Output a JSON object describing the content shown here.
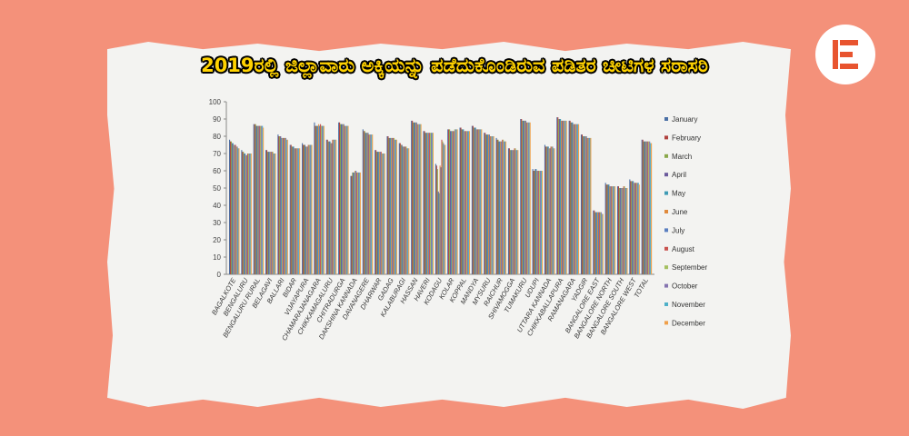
{
  "title": "2019ರಲ್ಲಿ ಜಿಲ್ಲಾವಾರು ಅಕ್ಕಿಯನ್ನು ಪಡೆದುಕೊಂಡಿರುವ ಪಡಿತರ ಚೀಟಿಗಳ ಸರಾಸರಿ",
  "logo_icon": "e-logo-icon",
  "colors": {
    "background": "#f4917a",
    "title": "#ffd200",
    "logo": "#e8542f"
  },
  "chart_data": {
    "type": "bar",
    "title": "",
    "xlabel": "",
    "ylabel": "",
    "ylim": [
      0,
      100
    ],
    "yticks": [
      "0",
      "10",
      "20",
      "30",
      "40",
      "50",
      "60",
      "70",
      "80",
      "90",
      "100"
    ],
    "grid": false,
    "legend_position": "right",
    "categories": [
      "BAGALKOTE",
      "BENGALURU",
      "BENGALURU RURAL",
      "BELAGAVI",
      "BALLARI",
      "BIDAR",
      "VIJAYAPURA",
      "CHAMARAJANAGARA",
      "CHIKKAMAGALURU",
      "CHITRADURGA",
      "DAKSHINA KANNADA",
      "DAVANAGERE",
      "DHARWAR",
      "GADAG",
      "KALABURAGI",
      "HASSAN",
      "HAVERI",
      "KODAGU",
      "KOLAR",
      "KOPPAL",
      "MANDYA",
      "MYSURU",
      "RAICHUR",
      "SHIVAMOGGA",
      "TUMAKURU",
      "UDUPI",
      "UTTARA KANNADA",
      "CHIKKABALLAPURA",
      "RAMANAGARA",
      "YADGIR",
      "BANGALORE EAST",
      "BANGALORE NORTH",
      "BANGALORE SOUTH",
      "BANGALORE WEST",
      "TOTAL"
    ],
    "series": [
      {
        "name": "January",
        "values": [
          78,
          72,
          87,
          72,
          81,
          75,
          76,
          88,
          78,
          88,
          57,
          84,
          72,
          80,
          76,
          89,
          83,
          64,
          84,
          85,
          86,
          82,
          79,
          73,
          90,
          61,
          75,
          91,
          89,
          81,
          37,
          53,
          51,
          55,
          78
        ]
      },
      {
        "name": "February",
        "values": [
          77,
          71,
          87,
          72,
          80,
          75,
          75,
          86,
          78,
          88,
          57,
          83,
          72,
          80,
          76,
          89,
          83,
          63,
          84,
          85,
          86,
          82,
          78,
          73,
          90,
          60,
          74,
          91,
          89,
          81,
          37,
          52,
          51,
          54,
          78
        ]
      },
      {
        "name": "March",
        "values": [
          77,
          71,
          87,
          71,
          80,
          74,
          75,
          86,
          77,
          87,
          59,
          83,
          71,
          79,
          75,
          88,
          82,
          61,
          84,
          84,
          85,
          81,
          78,
          72,
          89,
          60,
          74,
          90,
          88,
          80,
          36,
          52,
          50,
          54,
          77
        ]
      },
      {
        "name": "April",
        "values": [
          76,
          70,
          86,
          71,
          80,
          74,
          75,
          86,
          77,
          87,
          59,
          82,
          71,
          79,
          75,
          88,
          82,
          48,
          83,
          84,
          85,
          81,
          77,
          72,
          89,
          61,
          74,
          90,
          88,
          80,
          36,
          52,
          50,
          54,
          77
        ]
      },
      {
        "name": "May",
        "values": [
          76,
          70,
          86,
          71,
          79,
          74,
          74,
          86,
          77,
          87,
          59,
          82,
          71,
          79,
          74,
          88,
          82,
          47,
          83,
          84,
          85,
          81,
          77,
          72,
          89,
          61,
          74,
          90,
          88,
          80,
          36,
          52,
          50,
          54,
          77
        ]
      },
      {
        "name": "June",
        "values": [
          75,
          69,
          86,
          71,
          79,
          73,
          74,
          87,
          76,
          87,
          60,
          82,
          71,
          79,
          74,
          88,
          82,
          63,
          83,
          83,
          84,
          81,
          77,
          72,
          89,
          60,
          73,
          89,
          87,
          80,
          36,
          51,
          50,
          53,
          77
        ]
      },
      {
        "name": "July",
        "values": [
          75,
          69,
          86,
          71,
          79,
          73,
          74,
          86,
          76,
          87,
          60,
          82,
          71,
          79,
          74,
          88,
          82,
          62,
          83,
          83,
          84,
          81,
          77,
          72,
          89,
          60,
          73,
          89,
          87,
          80,
          36,
          51,
          50,
          53,
          77
        ]
      },
      {
        "name": "August",
        "values": [
          75,
          70,
          86,
          71,
          79,
          73,
          75,
          87,
          78,
          86,
          59,
          81,
          71,
          79,
          74,
          87,
          82,
          78,
          83,
          83,
          84,
          80,
          78,
          73,
          88,
          60,
          74,
          89,
          87,
          79,
          36,
          51,
          51,
          53,
          77
        ]
      },
      {
        "name": "September",
        "values": [
          74,
          70,
          86,
          71,
          79,
          73,
          75,
          86,
          78,
          86,
          59,
          81,
          70,
          79,
          74,
          87,
          82,
          77,
          84,
          83,
          84,
          80,
          78,
          73,
          88,
          60,
          74,
          89,
          87,
          79,
          36,
          51,
          51,
          53,
          77
        ]
      },
      {
        "name": "October",
        "values": [
          74,
          70,
          86,
          70,
          79,
          73,
          75,
          86,
          78,
          86,
          59,
          81,
          70,
          78,
          73,
          87,
          82,
          76,
          84,
          83,
          84,
          80,
          77,
          72,
          88,
          60,
          74,
          89,
          87,
          79,
          36,
          51,
          50,
          53,
          77
        ]
      },
      {
        "name": "November",
        "values": [
          73,
          70,
          86,
          70,
          78,
          73,
          75,
          86,
          78,
          86,
          59,
          81,
          70,
          78,
          73,
          87,
          82,
          75,
          84,
          83,
          84,
          80,
          77,
          72,
          88,
          60,
          73,
          89,
          87,
          79,
          35,
          51,
          50,
          53,
          76
        ]
      },
      {
        "name": "December",
        "values": [
          73,
          70,
          85,
          70,
          78,
          73,
          75,
          86,
          78,
          86,
          59,
          81,
          70,
          78,
          73,
          87,
          82,
          75,
          84,
          83,
          84,
          80,
          77,
          72,
          88,
          60,
          73,
          89,
          87,
          79,
          35,
          51,
          50,
          52,
          76
        ]
      }
    ],
    "series_colors": [
      "#4a6fa5",
      "#b0413e",
      "#8aa84a",
      "#6b5a9c",
      "#3f9bb5",
      "#e08a3c",
      "#5a7fc0",
      "#c9534f",
      "#a4c060",
      "#8574b0",
      "#4fb0c8",
      "#f0a04a"
    ]
  }
}
